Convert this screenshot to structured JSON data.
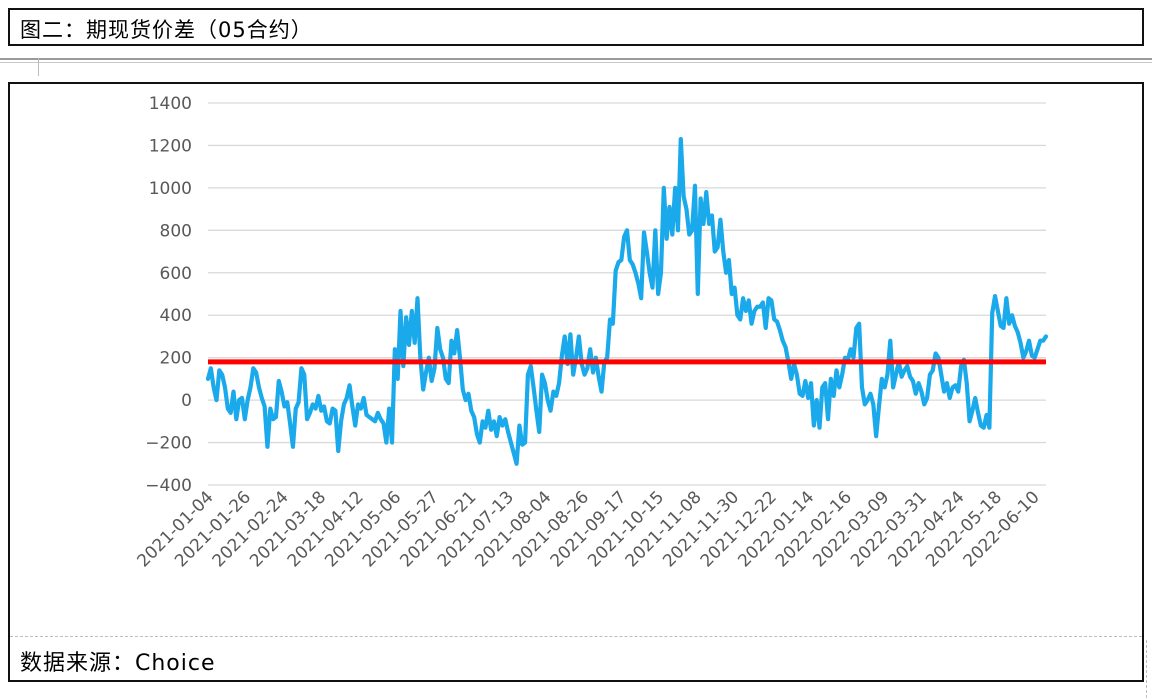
{
  "header": {
    "title": "图二：期现货价差（05合约）"
  },
  "footer": {
    "source": "数据来源：Choice"
  },
  "colors": {
    "series": "#1aa9ea",
    "reference": "#ff0000",
    "grid": "#d9d9d9",
    "tick": "#595959"
  },
  "chart_data": {
    "type": "line",
    "title": "",
    "xlabel": "",
    "ylabel": "",
    "ylim": [
      -400,
      1400
    ],
    "yticks": [
      -400,
      -200,
      0,
      200,
      400,
      600,
      800,
      1000,
      1200,
      1400
    ],
    "y_tick_labels": [
      "−400",
      "−200",
      "0",
      "200",
      "400",
      "600",
      "800",
      "1000",
      "1200",
      "1400"
    ],
    "grid": true,
    "x_tick_labels": [
      "2021-01-04",
      "2021-01-26",
      "2021-02-24",
      "2021-03-18",
      "2021-04-12",
      "2021-05-06",
      "2021-05-27",
      "2021-06-21",
      "2021-07-13",
      "2021-08-04",
      "2021-08-26",
      "2021-09-17",
      "2021-10-15",
      "2021-11-08",
      "2021-11-30",
      "2021-12-22",
      "2022-01-14",
      "2022-02-16",
      "2022-03-09",
      "2022-03-31",
      "2022-04-24",
      "2022-05-18",
      "2022-06-10"
    ],
    "series": [
      {
        "values": [
          100,
          150,
          60,
          0,
          140,
          120,
          60,
          -40,
          -60,
          40,
          -90,
          0,
          10,
          -90,
          0,
          60,
          150,
          130,
          60,
          10,
          -30,
          -220,
          -40,
          -90,
          -80,
          90,
          40,
          -30,
          -10,
          -110,
          -220,
          -40,
          -10,
          150,
          120,
          -90,
          -60,
          -20,
          -40,
          20,
          -50,
          -30,
          -100,
          -110,
          -40,
          -50,
          -240,
          -100,
          -20,
          10,
          70,
          -30,
          -120,
          -20,
          -40,
          10,
          -70,
          -80,
          -90,
          -100,
          -60,
          -90,
          -110,
          -200,
          -40,
          -200,
          240,
          100,
          420,
          160,
          390,
          260,
          420,
          270,
          480,
          200,
          50,
          130,
          200,
          90,
          150,
          340,
          240,
          200,
          100,
          80,
          280,
          220,
          330,
          200,
          50,
          0,
          30,
          -50,
          -80,
          -160,
          -200,
          -100,
          -130,
          -50,
          -140,
          -100,
          -170,
          -80,
          -120,
          -90,
          -150,
          -200,
          -250,
          -300,
          -120,
          -210,
          -200,
          120,
          160,
          60,
          -50,
          -150,
          120,
          80,
          0,
          -50,
          40,
          20,
          80,
          210,
          300,
          170,
          310,
          120,
          200,
          300,
          170,
          120,
          150,
          240,
          130,
          200,
          110,
          40,
          180,
          200,
          380,
          360,
          610,
          650,
          660,
          770,
          800,
          660,
          640,
          600,
          550,
          480,
          790,
          700,
          600,
          530,
          800,
          500,
          600,
          1000,
          760,
          910,
          780,
          1000,
          800,
          1230,
          960,
          900,
          780,
          800,
          1010,
          500,
          950,
          830,
          980,
          830,
          870,
          700,
          720,
          850,
          700,
          600,
          660,
          500,
          530,
          400,
          380,
          480,
          420,
          470,
          360,
          420,
          440,
          440,
          460,
          340,
          480,
          470,
          380,
          370,
          330,
          280,
          250,
          180,
          100,
          170,
          120,
          30,
          20,
          90,
          10,
          80,
          -120,
          0,
          -130,
          60,
          80,
          -90,
          100,
          20,
          140,
          60,
          120,
          200,
          190,
          240,
          200,
          340,
          360,
          60,
          -20,
          0,
          30,
          -20,
          -170,
          -30,
          100,
          60,
          120,
          280,
          60,
          120,
          180,
          110,
          140,
          160,
          110,
          90,
          30,
          80,
          40,
          -20,
          10,
          120,
          140,
          220,
          200,
          120,
          40,
          80,
          10,
          60,
          70,
          40,
          160,
          190,
          80,
          -100,
          -50,
          10,
          -60,
          -120,
          -130,
          -70,
          -130,
          410,
          490,
          420,
          350,
          340,
          480,
          360,
          400,
          350,
          320,
          270,
          200,
          230,
          280,
          210,
          200,
          240,
          280,
          280,
          300
        ]
      }
    ],
    "reference_line": {
      "y": 180
    }
  }
}
